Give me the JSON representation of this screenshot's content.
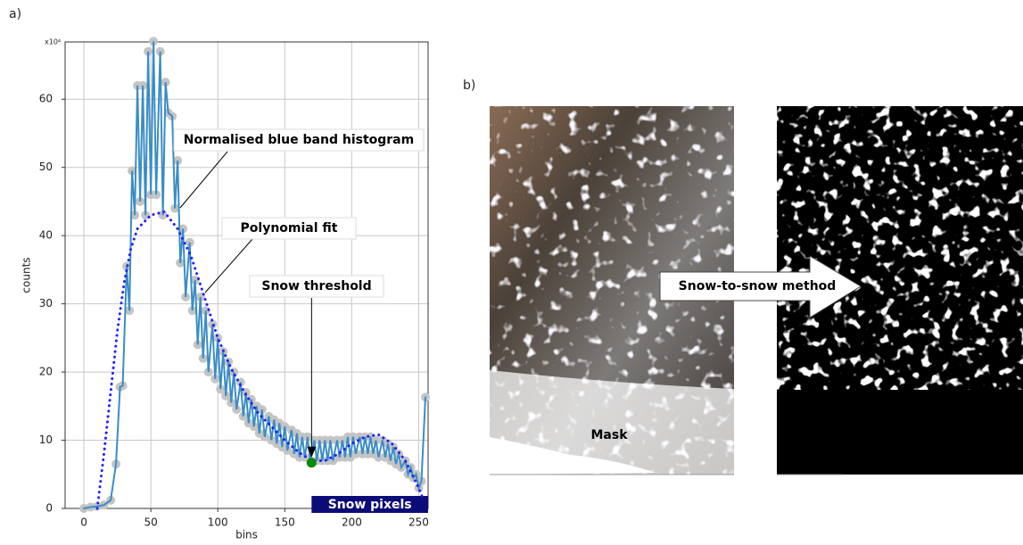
{
  "panel_labels": [
    "a)",
    "b)"
  ],
  "chart_data": {
    "type": "line",
    "x_label": "bins",
    "y_label": "counts",
    "y_multiplier": "x10⁴",
    "xlim": [
      -14,
      257
    ],
    "ylim": [
      0,
      68.4
    ],
    "xticks": [
      0,
      50,
      100,
      150,
      200,
      250
    ],
    "yticks": [
      0,
      10,
      20,
      30,
      40,
      50,
      60
    ],
    "grid": true,
    "series": [
      {
        "name": "Normalised blue band histogram",
        "color": "#3a8dc5",
        "style": "solid",
        "x": [
          0,
          5,
          10,
          15,
          20,
          24,
          27,
          29,
          32,
          34,
          36,
          38,
          40,
          42,
          44,
          46,
          48,
          50,
          52,
          54,
          57,
          59,
          61,
          63,
          66,
          68,
          70,
          72,
          74,
          76,
          79,
          81,
          83,
          85,
          87,
          89,
          91,
          93,
          96,
          98,
          100,
          102,
          104,
          106,
          108,
          110,
          112,
          114,
          117,
          119,
          121,
          123,
          125,
          127,
          129,
          131,
          133,
          135,
          138,
          140,
          142,
          144,
          146,
          148,
          150,
          152,
          155,
          157,
          159,
          161,
          163,
          165,
          167,
          169,
          172,
          174,
          176,
          178,
          180,
          182,
          184,
          186,
          189,
          191,
          193,
          195,
          197,
          199,
          201,
          203,
          206,
          208,
          210,
          212,
          214,
          216,
          218,
          220,
          223,
          225,
          227,
          229,
          231,
          233,
          235,
          237,
          240,
          242,
          244,
          246,
          248,
          250,
          252,
          255
        ],
        "values": [
          0,
          0.2,
          0.3,
          0.5,
          1.2,
          6.5,
          17.8,
          18,
          35.5,
          29,
          49.5,
          43,
          62,
          45,
          62,
          43,
          67,
          46,
          68.5,
          46,
          67,
          43,
          62.5,
          58,
          57.5,
          44,
          51,
          36,
          41,
          31,
          39,
          29,
          33.5,
          24,
          31,
          22,
          29,
          20,
          27,
          19,
          25,
          17.5,
          23,
          16.5,
          21.5,
          15.5,
          20,
          14.5,
          18.5,
          13.5,
          17,
          12.5,
          16,
          12,
          15,
          11,
          14.5,
          10.5,
          13.5,
          10,
          13,
          9.5,
          12.5,
          9,
          12,
          8.5,
          11.5,
          8,
          11,
          7.5,
          10.5,
          7.5,
          10.5,
          7,
          10,
          7,
          10,
          7,
          10,
          7,
          10,
          7,
          10,
          7.5,
          10,
          7.5,
          10.5,
          7.5,
          10.5,
          8,
          10.5,
          8,
          10.5,
          8,
          10.5,
          8,
          10,
          7.5,
          10,
          7.5,
          9.5,
          7,
          9,
          6.5,
          8,
          6,
          7,
          5,
          6,
          4.5,
          5,
          3,
          4,
          16.3
        ]
      },
      {
        "name": "Polynomial fit",
        "color": "#1f1fff",
        "style": "dotted",
        "x": [
          10,
          15,
          20,
          25,
          30,
          35,
          40,
          50,
          60,
          70,
          80,
          90,
          100,
          110,
          120,
          130,
          140,
          150,
          160,
          170,
          180,
          190,
          200,
          210,
          220,
          230,
          240,
          250,
          253
        ],
        "values": [
          0,
          8,
          17,
          26,
          33,
          38,
          41,
          43,
          43.5,
          41,
          37,
          31,
          25,
          20.5,
          17,
          14,
          12,
          10,
          8.3,
          7,
          7,
          8,
          9.5,
          10.5,
          10.8,
          9.5,
          7,
          3,
          1.5
        ]
      }
    ],
    "threshold": {
      "name": "Snow threshold",
      "x": 170,
      "value": 6.7,
      "color": "#0a8a0a"
    },
    "region": {
      "label": "Snow pixels",
      "from": 170,
      "to": 257,
      "color": "#0c0c78"
    }
  },
  "images": {
    "mask_label": "Mask",
    "arrow_label": "Snow-to-snow method"
  }
}
